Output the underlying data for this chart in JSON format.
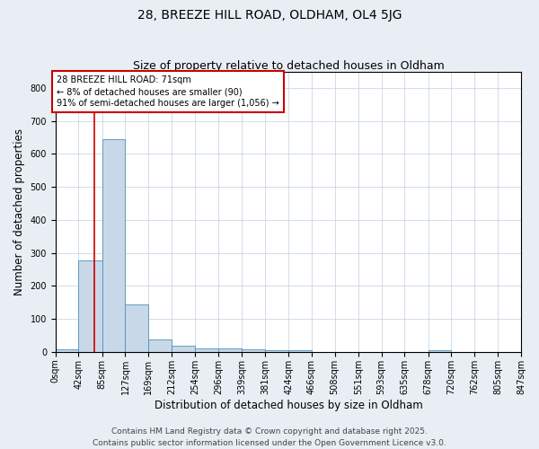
{
  "title": "28, BREEZE HILL ROAD, OLDHAM, OL4 5JG",
  "subtitle": "Size of property relative to detached houses in Oldham",
  "xlabel": "Distribution of detached houses by size in Oldham",
  "ylabel": "Number of detached properties",
  "bin_edges": [
    0,
    42,
    85,
    127,
    169,
    212,
    254,
    296,
    339,
    381,
    424,
    466,
    508,
    551,
    593,
    635,
    678,
    720,
    762,
    805,
    847
  ],
  "bar_heights": [
    7,
    278,
    645,
    143,
    38,
    18,
    12,
    12,
    8,
    5,
    5,
    0,
    0,
    0,
    0,
    0,
    4,
    0,
    0,
    0
  ],
  "bar_color": "#c8d8e8",
  "bar_edge_color": "#5090b8",
  "property_size": 71,
  "red_line_color": "#cc0000",
  "annotation_text": "28 BREEZE HILL ROAD: 71sqm\n← 8% of detached houses are smaller (90)\n91% of semi-detached houses are larger (1,056) →",
  "annotation_box_color": "#cc0000",
  "ylim": [
    0,
    850
  ],
  "yticks": [
    0,
    100,
    200,
    300,
    400,
    500,
    600,
    700,
    800
  ],
  "footer_text": "Contains HM Land Registry data © Crown copyright and database right 2025.\nContains public sector information licensed under the Open Government Licence v3.0.",
  "background_color": "#e8eef4",
  "plot_background_color": "#ffffff",
  "grid_color": "#c0cfe0",
  "title_fontsize": 10,
  "subtitle_fontsize": 9,
  "axis_label_fontsize": 8.5,
  "tick_fontsize": 7,
  "footer_fontsize": 6.5
}
